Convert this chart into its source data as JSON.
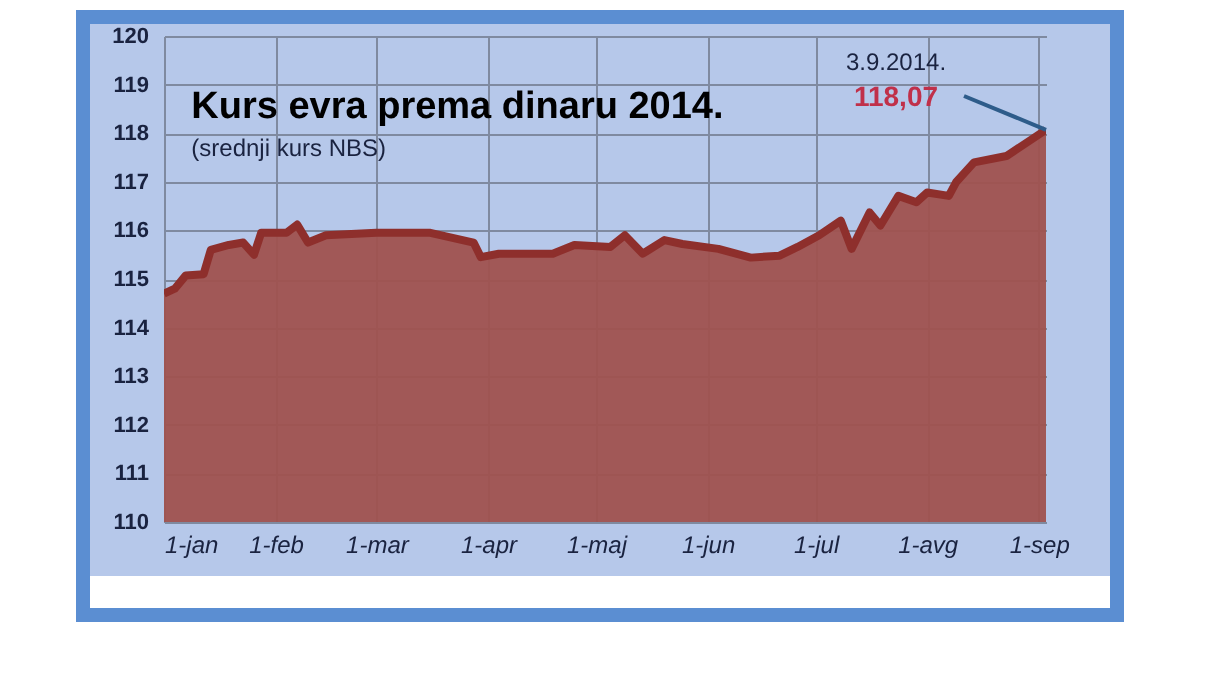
{
  "chart_data": {
    "type": "area",
    "title": "Kurs evra prema dinaru  2014.",
    "subtitle": "(srednji kurs NBS)",
    "x": [
      "2014-01-01",
      "2014-01-04",
      "2014-01-07",
      "2014-01-12",
      "2014-01-14",
      "2014-01-19",
      "2014-01-23",
      "2014-01-26",
      "2014-01-28",
      "2014-02-04",
      "2014-02-07",
      "2014-02-10",
      "2014-02-15",
      "2014-03-01",
      "2014-03-16",
      "2014-03-28",
      "2014-03-30",
      "2014-04-04",
      "2014-04-19",
      "2014-04-25",
      "2014-05-05",
      "2014-05-09",
      "2014-05-14",
      "2014-05-20",
      "2014-05-25",
      "2014-06-04",
      "2014-06-13",
      "2014-06-21",
      "2014-06-26",
      "2014-07-02",
      "2014-07-08",
      "2014-07-11",
      "2014-07-16",
      "2014-07-19",
      "2014-07-24",
      "2014-07-29",
      "2014-08-01",
      "2014-08-07",
      "2014-08-09",
      "2014-08-14",
      "2014-08-23",
      "2014-09-03"
    ],
    "series": [
      {
        "color": "#a0524f",
        "values": [
          114.7,
          114.8,
          115.07,
          115.1,
          115.6,
          115.7,
          115.75,
          115.5,
          115.95,
          115.95,
          116.12,
          115.75,
          115.9,
          115.95,
          115.95,
          115.75,
          115.45,
          115.52,
          115.52,
          115.7,
          115.66,
          115.9,
          115.52,
          115.8,
          115.72,
          115.62,
          115.44,
          115.48,
          115.66,
          115.9,
          116.2,
          115.62,
          116.37,
          116.1,
          116.71,
          116.58,
          116.78,
          116.71,
          116.99,
          117.4,
          117.53,
          118.07
        ]
      }
    ],
    "xlim": [
      "2014-01-01",
      "2014-09-03"
    ],
    "xticks": [
      {
        "value": "2014-01-01",
        "label": "1-jan"
      },
      {
        "value": "2014-02-01",
        "label": "1-feb"
      },
      {
        "value": "2014-03-01",
        "label": "1-mar"
      },
      {
        "value": "2014-04-01",
        "label": "1-apr"
      },
      {
        "value": "2014-05-01",
        "label": "1-maj"
      },
      {
        "value": "2014-06-01",
        "label": "1-jun"
      },
      {
        "value": "2014-07-01",
        "label": "1-jul"
      },
      {
        "value": "2014-08-01",
        "label": "1-avg"
      },
      {
        "value": "2014-09-01",
        "label": "1-sep"
      }
    ],
    "ylim": [
      110,
      120
    ],
    "yticks": [
      110,
      111,
      112,
      113,
      114,
      115,
      116,
      117,
      118,
      119,
      120
    ],
    "grid": true,
    "annotations": [
      {
        "text": "3.9.2014.",
        "x": "2014-09-03",
        "y": 118.07
      },
      {
        "text": "118,07",
        "x": "2014-09-03",
        "y": 118.07
      }
    ]
  }
}
